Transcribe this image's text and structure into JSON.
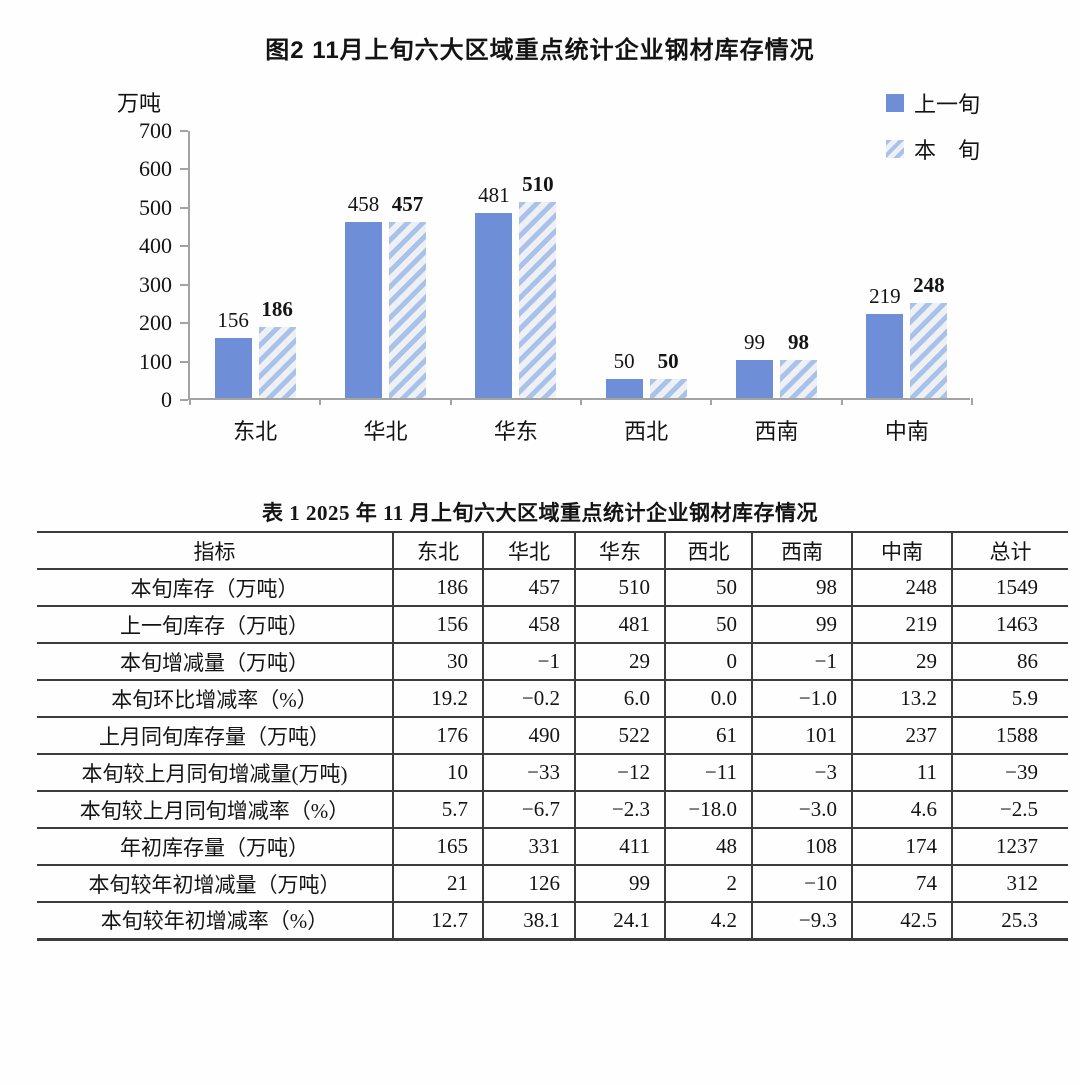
{
  "chart": {
    "title": "图2  11月上旬六大区域重点统计企业钢材库存情况",
    "unit_label": "万吨",
    "legend": [
      "上一旬",
      "本　旬"
    ],
    "colors": {
      "bar_solid": "#6e8ed7",
      "bar_hatch_stripe": "#a9c2e9",
      "bar_hatch_bg": "#eef0f4",
      "axis": "#a3a3a3"
    }
  },
  "chart_data": {
    "type": "bar",
    "categories": [
      "东北",
      "华北",
      "华东",
      "西北",
      "西南",
      "中南"
    ],
    "series": [
      {
        "name": "上一旬",
        "values": [
          156,
          458,
          481,
          50,
          99,
          219
        ]
      },
      {
        "name": "本旬",
        "values": [
          186,
          457,
          510,
          50,
          98,
          248
        ]
      }
    ],
    "title": "图2  11月上旬六大区域重点统计企业钢材库存情况",
    "xlabel": "",
    "ylabel": "万吨",
    "ylim": [
      0,
      700
    ],
    "ytick_interval": 100,
    "grid": false,
    "legend_position": "top-right",
    "data_labels": true
  },
  "table": {
    "title": "表 1  2025 年 11 月上旬六大区域重点统计企业钢材库存情况",
    "columns": [
      "指标",
      "东北",
      "华北",
      "华东",
      "西北",
      "西南",
      "中南",
      "总计"
    ],
    "rows": [
      {
        "label": "本旬库存（万吨）",
        "values": [
          "186",
          "457",
          "510",
          "50",
          "98",
          "248",
          "1549"
        ]
      },
      {
        "label": "上一旬库存（万吨）",
        "values": [
          "156",
          "458",
          "481",
          "50",
          "99",
          "219",
          "1463"
        ]
      },
      {
        "label": "本旬增减量（万吨）",
        "values": [
          "30",
          "−1",
          "29",
          "0",
          "−1",
          "29",
          "86"
        ]
      },
      {
        "label": "本旬环比增减率（%）",
        "values": [
          "19.2",
          "−0.2",
          "6.0",
          "0.0",
          "−1.0",
          "13.2",
          "5.9"
        ]
      },
      {
        "label": "上月同旬库存量（万吨）",
        "values": [
          "176",
          "490",
          "522",
          "61",
          "101",
          "237",
          "1588"
        ]
      },
      {
        "label": "本旬较上月同旬增减量(万吨)",
        "values": [
          "10",
          "−33",
          "−12",
          "−11",
          "−3",
          "11",
          "−39"
        ]
      },
      {
        "label": "本旬较上月同旬增减率（%）",
        "values": [
          "5.7",
          "−6.7",
          "−2.3",
          "−18.0",
          "−3.0",
          "4.6",
          "−2.5"
        ]
      },
      {
        "label": "年初库存量（万吨）",
        "values": [
          "165",
          "331",
          "411",
          "48",
          "108",
          "174",
          "1237"
        ]
      },
      {
        "label": "本旬较年初增减量（万吨）",
        "values": [
          "21",
          "126",
          "99",
          "2",
          "−10",
          "74",
          "312"
        ]
      },
      {
        "label": "本旬较年初增减率（%）",
        "values": [
          "12.7",
          "38.1",
          "24.1",
          "4.2",
          "−9.3",
          "42.5",
          "25.3"
        ]
      }
    ]
  }
}
